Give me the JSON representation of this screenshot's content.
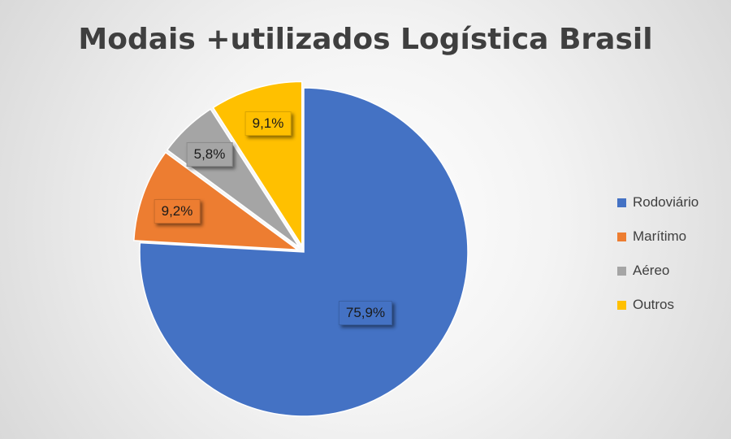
{
  "chart_data": {
    "type": "pie",
    "title": "Modais +utilizados Logística Brasil",
    "categories": [
      "Rodoviário",
      "Marítimo",
      "Aéreo",
      "Outros"
    ],
    "values": [
      75.9,
      9.2,
      5.8,
      9.1
    ],
    "data_labels": [
      "75,9%",
      "9,2%",
      "5,8%",
      "9,1%"
    ],
    "colors": [
      "#4472C4",
      "#ED7D31",
      "#A5A5A5",
      "#FFC000"
    ],
    "legend_position": "right"
  }
}
